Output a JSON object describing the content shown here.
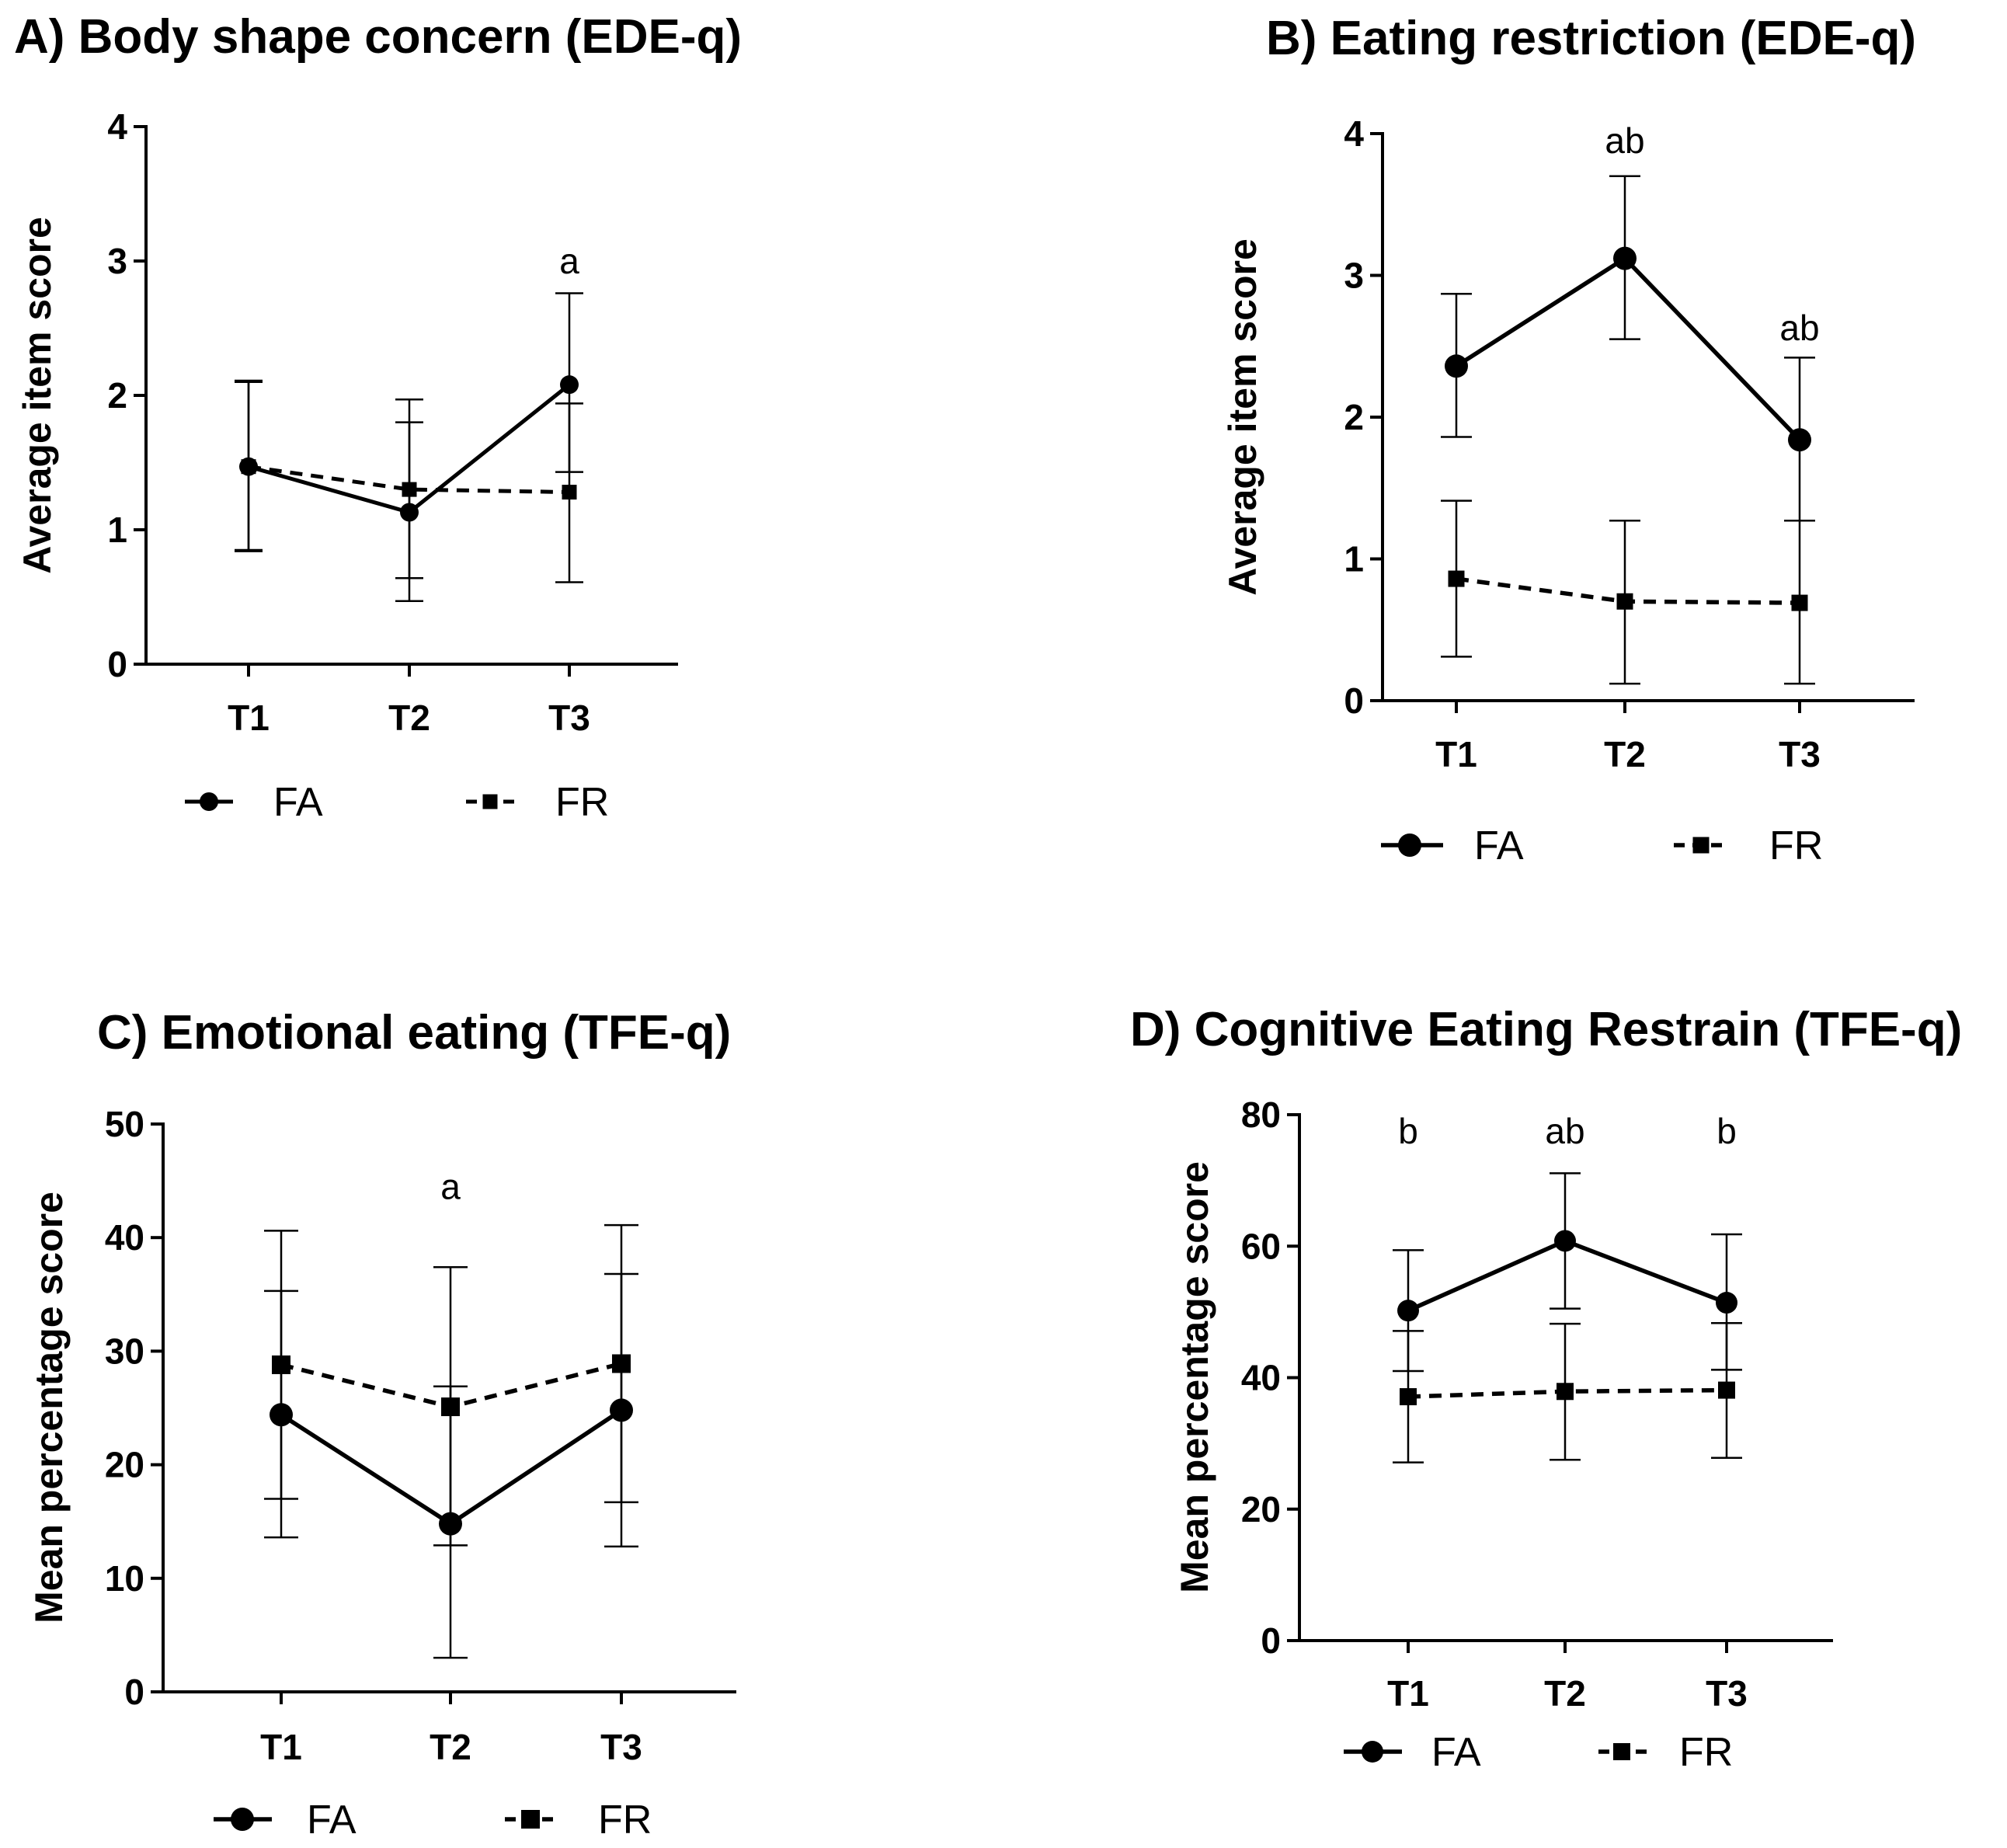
{
  "chart_data": [
    {
      "type": "line",
      "title": "A) Body shape concern (EDE-q)",
      "ylabel": "Average item score",
      "xlabel": "",
      "ylim": [
        0,
        4
      ],
      "yticks": [
        "0",
        "1",
        "2",
        "3",
        "4"
      ],
      "categories": [
        "T1",
        "T2",
        "T3"
      ],
      "series": [
        {
          "name": "FA",
          "marker": "circle",
          "dashed": false,
          "values": [
            1.47,
            1.13,
            2.08
          ],
          "err_low": [
            0.85,
            0.47,
            1.43
          ],
          "err_high": [
            2.1,
            1.8,
            2.76
          ]
        },
        {
          "name": "FR",
          "marker": "square",
          "dashed": true,
          "values": [
            1.47,
            1.3,
            1.28
          ],
          "err_low": [
            0.84,
            0.64,
            0.61
          ],
          "err_high": [
            2.11,
            1.97,
            1.94
          ]
        }
      ],
      "annotations": [
        {
          "category": "T3",
          "text": "a",
          "y": 3.0
        }
      ]
    },
    {
      "type": "line",
      "title": "B) Eating restriction (EDE-q)",
      "ylabel": "Average item score",
      "xlabel": "",
      "ylim": [
        0,
        4
      ],
      "yticks": [
        "0",
        "1",
        "2",
        "3",
        "4"
      ],
      "categories": [
        "T1",
        "T2",
        "T3"
      ],
      "series": [
        {
          "name": "FA",
          "marker": "circle",
          "dashed": false,
          "values": [
            2.36,
            3.12,
            1.84
          ],
          "err_low": [
            1.86,
            2.55,
            1.27
          ],
          "err_high": [
            2.87,
            3.7,
            2.42
          ]
        },
        {
          "name": "FR",
          "marker": "square",
          "dashed": true,
          "values": [
            0.86,
            0.7,
            0.69
          ],
          "err_low": [
            0.31,
            0.12,
            0.12
          ],
          "err_high": [
            1.41,
            1.27,
            1.27
          ]
        }
      ],
      "annotations": [
        {
          "category": "T2",
          "text": "ab",
          "y": 3.95
        },
        {
          "category": "T3",
          "text": "ab",
          "y": 2.63
        }
      ]
    },
    {
      "type": "line",
      "title": "C) Emotional eating (TFE-q)",
      "ylabel": "Mean percentage score",
      "xlabel": "",
      "ylim": [
        0,
        50
      ],
      "yticks": [
        "0",
        "10",
        "20",
        "30",
        "40",
        "50"
      ],
      "categories": [
        "T1",
        "T2",
        "T3"
      ],
      "series": [
        {
          "name": "FA",
          "marker": "circle",
          "dashed": false,
          "values": [
            24.4,
            14.8,
            24.8
          ],
          "err_low": [
            13.6,
            3.0,
            12.8
          ],
          "err_high": [
            35.3,
            26.9,
            36.8
          ]
        },
        {
          "name": "FR",
          "marker": "square",
          "dashed": true,
          "values": [
            28.8,
            25.1,
            28.9
          ],
          "err_low": [
            17.0,
            12.9,
            16.7
          ],
          "err_high": [
            40.6,
            37.4,
            41.1
          ]
        }
      ],
      "annotations": [
        {
          "category": "T2",
          "text": "a",
          "y": 44.5
        }
      ]
    },
    {
      "type": "line",
      "title": "D) Cognitive Eating Restrain (TFE-q)",
      "ylabel": "Mean percentage score",
      "xlabel": "",
      "ylim": [
        0,
        80
      ],
      "yticks": [
        "0",
        "20",
        "40",
        "60",
        "80"
      ],
      "categories": [
        "T1",
        "T2",
        "T3"
      ],
      "series": [
        {
          "name": "FA",
          "marker": "circle",
          "dashed": false,
          "values": [
            50.2,
            60.8,
            51.4
          ],
          "err_low": [
            41.0,
            50.5,
            41.2
          ],
          "err_high": [
            59.4,
            71.1,
            61.8
          ]
        },
        {
          "name": "FR",
          "marker": "square",
          "dashed": true,
          "values": [
            37.1,
            37.9,
            38.1
          ],
          "err_low": [
            27.1,
            27.5,
            27.8
          ],
          "err_high": [
            47.1,
            48.2,
            48.3
          ]
        }
      ],
      "annotations": [
        {
          "category": "T1",
          "text": "b",
          "y": 77.5
        },
        {
          "category": "T2",
          "text": "ab",
          "y": 77.5
        },
        {
          "category": "T3",
          "text": "b",
          "y": 77.5
        }
      ]
    }
  ]
}
